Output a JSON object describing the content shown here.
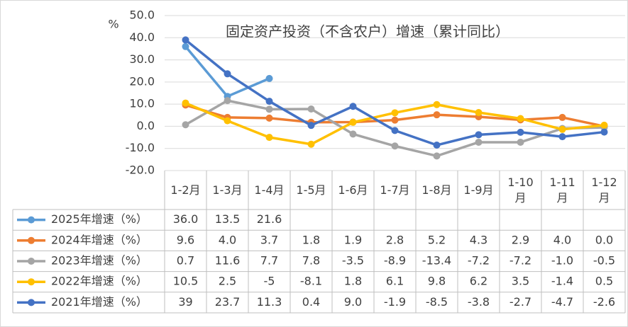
{
  "chart_data": {
    "type": "line",
    "title": "固定资产投资（不含农户）增速（累计同比）",
    "y_label": "%",
    "categories": [
      "1-2月",
      "1-3月",
      "1-4月",
      "1-5月",
      "1-6月",
      "1-7月",
      "1-8月",
      "1-9月",
      "1-10月",
      "1-11月",
      "1-12月"
    ],
    "ylim": [
      -20,
      50
    ],
    "yticks": [
      {
        "value": 50,
        "label": "50.0"
      },
      {
        "value": 40,
        "label": "40.0"
      },
      {
        "value": 30,
        "label": "30.0"
      },
      {
        "value": 20,
        "label": "20.0"
      },
      {
        "value": 10,
        "label": "10.0"
      },
      {
        "value": 0,
        "label": "0.0"
      },
      {
        "value": -10,
        "label": "-10.0"
      },
      {
        "value": -20,
        "label": "-20.0"
      }
    ],
    "grid": true,
    "legend": "table",
    "series": [
      {
        "name": "2025年增速（%）",
        "color": "#5b9bd5",
        "values": [
          36,
          13.5,
          21.6,
          null,
          null,
          null,
          null,
          null,
          null,
          null,
          null
        ],
        "value_labels": [
          "36.0",
          "13.5",
          "21.6",
          null,
          null,
          null,
          null,
          null,
          null,
          null,
          null
        ]
      },
      {
        "name": "2024年增速（%）",
        "color": "#ed7d31",
        "values": [
          9.6,
          4,
          3.7,
          1.8,
          1.9,
          2.8,
          5.2,
          4.3,
          2.9,
          4,
          0
        ],
        "value_labels": [
          "9.6",
          "4.0",
          "3.7",
          "1.8",
          "1.9",
          "2.8",
          "5.2",
          "4.3",
          "2.9",
          "4.0",
          "0.0"
        ]
      },
      {
        "name": "2023年增速（%）",
        "color": "#a5a5a5",
        "values": [
          0.7,
          11.6,
          7.7,
          7.8,
          -3.5,
          -8.9,
          -13.4,
          -7.2,
          -7.2,
          -1,
          -0.5
        ],
        "value_labels": [
          "0.7",
          "11.6",
          "7.7",
          "7.8",
          "-3.5",
          "-8.9",
          "-13.4",
          "-7.2",
          "-7.2",
          "-1.0",
          "-0.5"
        ]
      },
      {
        "name": "2022年增速（%）",
        "color": "#ffc000",
        "values": [
          10.5,
          2.5,
          -5,
          -8.1,
          1.8,
          6.1,
          9.8,
          6.2,
          3.5,
          -1.4,
          0.5
        ],
        "value_labels": [
          "10.5",
          "2.5",
          "-5",
          "-8.1",
          "1.8",
          "6.1",
          "9.8",
          "6.2",
          "3.5",
          "-1.4",
          "0.5"
        ]
      },
      {
        "name": "2021年增速（%）",
        "color": "#4472c4",
        "values": [
          39,
          23.7,
          11.3,
          0.4,
          9,
          -1.9,
          -8.5,
          -3.8,
          -2.7,
          -4.7,
          -2.6
        ],
        "value_labels": [
          "39",
          "23.7",
          "11.3",
          "0.4",
          "9.0",
          "-1.9",
          "-8.5",
          "-3.8",
          "-2.7",
          "-4.7",
          "-2.6"
        ]
      }
    ]
  }
}
